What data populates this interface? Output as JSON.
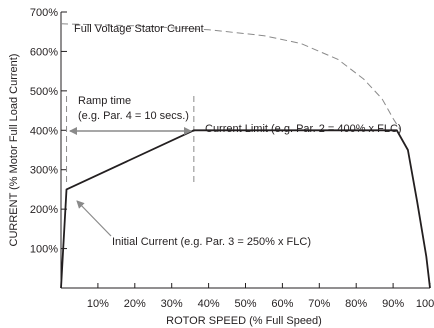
{
  "chart_data": {
    "type": "line",
    "xlabel": "ROTOR SPEED (% Full Speed)",
    "ylabel": "CURRENT (% Motor Full Load Current)",
    "x_ticks": [
      "10%",
      "20%",
      "30%",
      "40%",
      "50%",
      "60%",
      "70%",
      "80%",
      "90%",
      "100%"
    ],
    "y_ticks": [
      "100%",
      "200%",
      "300%",
      "400%",
      "500%",
      "600%",
      "700%"
    ],
    "xlim": [
      0,
      100
    ],
    "ylim": [
      0,
      700
    ],
    "grid": false,
    "series": [
      {
        "name": "Full Voltage Stator Current",
        "style": "dashed",
        "color": "#8a8a8a",
        "points": [
          [
            0,
            670
          ],
          [
            20,
            665
          ],
          [
            40,
            655
          ],
          [
            55,
            640
          ],
          [
            65,
            620
          ],
          [
            75,
            580
          ],
          [
            82,
            530
          ],
          [
            87,
            480
          ],
          [
            90,
            430
          ],
          [
            92,
            400
          ]
        ]
      },
      {
        "name": "Current Limit",
        "style": "solid",
        "color": "#231f20",
        "points": [
          [
            0,
            0
          ],
          [
            1.5,
            250
          ],
          [
            36,
            400
          ],
          [
            91,
            400
          ],
          [
            94,
            350
          ],
          [
            96.5,
            220
          ],
          [
            99,
            80
          ],
          [
            100,
            0
          ]
        ]
      }
    ],
    "markers": [
      {
        "x": 1.5,
        "style": "dashed"
      },
      {
        "x": 36,
        "style": "dashed"
      }
    ],
    "annotations": {
      "full_voltage": "Full Voltage Stator Current",
      "ramp_time_line1": "Ramp time",
      "ramp_time_line2": "(e.g. Par. 4 = 10 secs.)",
      "current_limit": "Current Limit (e.g. Par. 2 = 400% x FLC)",
      "initial_current": "Initial Current (e.g. Par. 3 = 250% x FLC)"
    }
  }
}
